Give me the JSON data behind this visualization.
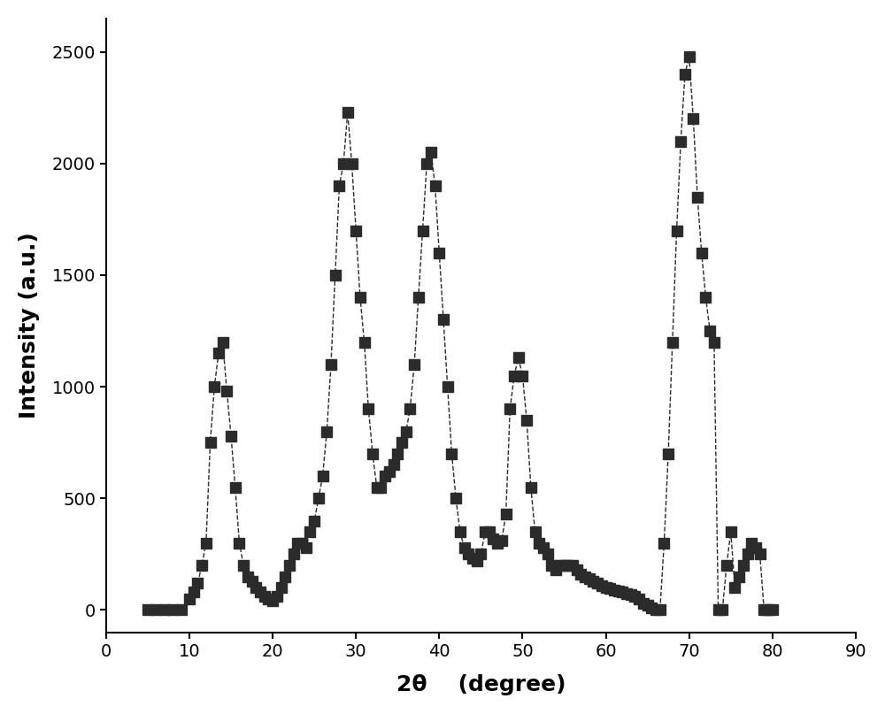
{
  "xlabel": "2θ    (degree)",
  "ylabel": "Intensity (a.u.)",
  "xlim": [
    0,
    90
  ],
  "ylim": [
    -100,
    2650
  ],
  "xticks": [
    0,
    10,
    20,
    30,
    40,
    50,
    60,
    70,
    80,
    90
  ],
  "yticks": [
    0,
    500,
    1000,
    1500,
    2000,
    2500
  ],
  "line_color": "#2b2b2b",
  "marker": "s",
  "markersize": 9,
  "linewidth": 1.0,
  "linestyle": "--",
  "background_color": "#ffffff",
  "x": [
    5,
    6,
    7,
    8,
    9,
    10,
    10.5,
    11,
    11.5,
    12,
    12.5,
    13,
    13.5,
    14,
    14.5,
    15,
    15.5,
    16,
    16.5,
    17,
    17.5,
    18,
    18.5,
    19,
    19.5,
    20,
    20.5,
    21,
    21.5,
    22,
    22.5,
    23,
    23.5,
    24,
    24.5,
    25,
    25.5,
    26,
    26.5,
    27,
    27.5,
    28,
    28.5,
    29,
    29.5,
    30,
    30.5,
    31,
    31.5,
    32,
    32.5,
    33,
    33.5,
    34,
    34.5,
    35,
    35.5,
    36,
    36.5,
    37,
    37.5,
    38,
    38.5,
    39,
    39.5,
    40,
    40.5,
    41,
    41.5,
    42,
    42.5,
    43,
    43.5,
    44,
    44.5,
    45,
    45.5,
    46,
    46.5,
    47,
    47.5,
    48,
    48.5,
    49,
    49.5,
    50,
    50.5,
    51,
    51.5,
    52,
    52.5,
    53,
    53.5,
    54,
    54.5,
    55,
    55.5,
    56,
    56.5,
    57,
    57.5,
    58,
    58.5,
    59,
    59.5,
    60,
    60.5,
    61,
    61.5,
    62,
    62.5,
    63,
    63.5,
    64,
    64.5,
    65,
    65.5,
    66,
    66.5,
    67,
    67.5,
    68,
    68.5,
    69,
    69.5,
    70,
    70.5,
    71,
    71.5,
    72,
    72.5,
    73,
    73.5,
    74,
    74.5,
    75,
    75.5,
    76,
    76.5,
    77,
    77.5,
    78,
    78.5,
    79,
    79.5,
    80
  ],
  "y": [
    0,
    0,
    0,
    0,
    0,
    50,
    80,
    120,
    200,
    300,
    750,
    1000,
    1150,
    1200,
    980,
    780,
    550,
    300,
    200,
    150,
    130,
    100,
    80,
    60,
    50,
    40,
    60,
    100,
    150,
    200,
    250,
    300,
    300,
    280,
    350,
    400,
    500,
    600,
    800,
    1100,
    1500,
    1900,
    2000,
    2230,
    2000,
    1700,
    1400,
    1200,
    900,
    700,
    550,
    550,
    600,
    620,
    650,
    700,
    750,
    800,
    900,
    1100,
    1400,
    1700,
    2000,
    2050,
    1900,
    1600,
    1300,
    1000,
    700,
    500,
    350,
    280,
    250,
    230,
    220,
    250,
    350,
    350,
    320,
    300,
    310,
    430,
    900,
    1050,
    1130,
    1050,
    850,
    550,
    350,
    300,
    280,
    250,
    200,
    180,
    200,
    200,
    200,
    200,
    180,
    160,
    150,
    140,
    130,
    120,
    110,
    100,
    95,
    90,
    85,
    80,
    75,
    70,
    60,
    50,
    30,
    20,
    10,
    0,
    0,
    300,
    700,
    1200,
    1700,
    2100,
    2400,
    2480,
    2200,
    1850,
    1600,
    1400,
    1250,
    1200,
    0,
    0,
    200,
    350,
    100,
    150,
    200,
    250,
    300,
    280,
    250,
    0,
    0,
    0
  ]
}
